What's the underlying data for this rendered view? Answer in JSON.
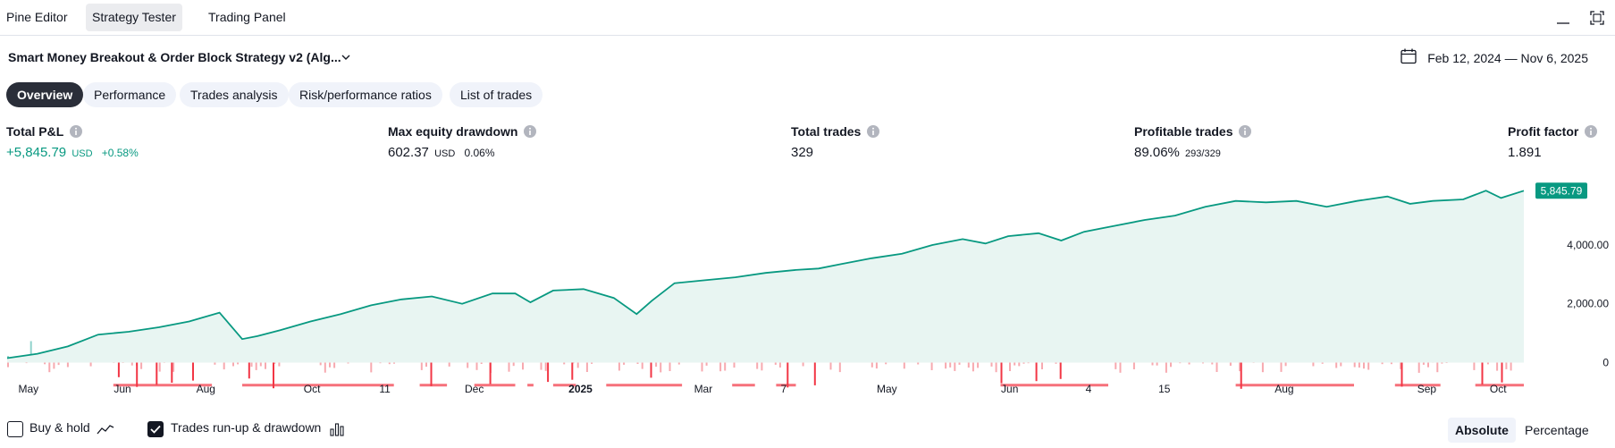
{
  "top_tabs": [
    {
      "label": "Pine Editor",
      "active": false
    },
    {
      "label": "Strategy Tester",
      "active": true
    },
    {
      "label": "Trading Panel",
      "active": false
    }
  ],
  "strategy": {
    "title": "Smart Money Breakout & Order Block Strategy v2 (Alg...",
    "date_range": "Feb 12, 2024 — Nov 6, 2025"
  },
  "sub_tabs": [
    {
      "label": "Overview",
      "active": true
    },
    {
      "label": "Performance",
      "active": false
    },
    {
      "label": "Trades analysis",
      "active": false
    },
    {
      "label": "Risk/performance ratios",
      "active": false
    },
    {
      "label": "List of trades",
      "active": false
    }
  ],
  "metrics": {
    "total_pnl": {
      "label": "Total P&L",
      "value": "+5,845.79",
      "unit": "USD",
      "extra": "+0.58%"
    },
    "max_drawdown": {
      "label": "Max equity drawdown",
      "value": "602.37",
      "unit": "USD",
      "extra": "0.06%"
    },
    "total_trades": {
      "label": "Total trades",
      "value": "329"
    },
    "profitable_trades": {
      "label": "Profitable trades",
      "value": "89.06%",
      "extra": "293/329"
    },
    "profit_factor": {
      "label": "Profit factor",
      "value": "1.891"
    }
  },
  "colors": {
    "accent_green": "#089981",
    "equity_line": "#089981",
    "equity_fill": "#e8f5f2",
    "runup_bar": "#26a69a",
    "drawdown_bar": "#f23645",
    "drawdown_light": "#f7a9af"
  },
  "chart_data": {
    "type": "area",
    "title": "",
    "xlabel": "",
    "ylabel": "",
    "y_tick_labels": [
      "4,000.00",
      "2,000.00",
      "0"
    ],
    "y_ticks": [
      4000,
      2000,
      0
    ],
    "ylim": [
      -1050,
      6250
    ],
    "last_value_label": "5,845.79",
    "x_tick_labels": [
      "May",
      "Jun",
      "Aug",
      "Oct",
      "11",
      "Dec",
      "2025",
      "Mar",
      "7",
      "May",
      "Jun",
      "4",
      "15",
      "Aug",
      "Sep",
      "Oct"
    ],
    "x_tick_positions": [
      0.014,
      0.076,
      0.131,
      0.201,
      0.249,
      0.308,
      0.378,
      0.459,
      0.512,
      0.58,
      0.661,
      0.713,
      0.763,
      0.842,
      0.936,
      0.983
    ],
    "bold_tick": "2025",
    "equity_series": {
      "name": "Equity",
      "x": [
        0,
        0.02,
        0.04,
        0.06,
        0.08,
        0.1,
        0.12,
        0.14,
        0.155,
        0.165,
        0.18,
        0.2,
        0.22,
        0.24,
        0.26,
        0.28,
        0.3,
        0.32,
        0.335,
        0.345,
        0.36,
        0.38,
        0.4,
        0.415,
        0.425,
        0.44,
        0.46,
        0.48,
        0.5,
        0.52,
        0.535,
        0.55,
        0.57,
        0.59,
        0.61,
        0.63,
        0.645,
        0.66,
        0.68,
        0.695,
        0.71,
        0.73,
        0.75,
        0.77,
        0.79,
        0.81,
        0.83,
        0.85,
        0.87,
        0.89,
        0.91,
        0.925,
        0.94,
        0.96,
        0.975,
        0.985,
        1.0
      ],
      "y": [
        150,
        300,
        550,
        950,
        1050,
        1200,
        1400,
        1700,
        800,
        900,
        1100,
        1400,
        1650,
        1950,
        2150,
        2250,
        2000,
        2350,
        2350,
        2050,
        2450,
        2500,
        2200,
        1650,
        2100,
        2700,
        2800,
        2900,
        3050,
        3150,
        3200,
        3350,
        3550,
        3700,
        4000,
        4200,
        4050,
        4300,
        4400,
        4150,
        4450,
        4650,
        4850,
        5000,
        5300,
        5500,
        5450,
        5500,
        5300,
        5500,
        5650,
        5400,
        5500,
        5550,
        5850,
        5600,
        5845.79
      ]
    },
    "runup_drawdown": {
      "runup_max": 800,
      "drawdown_min": -900,
      "drawdown_spike_positions": [
        0.073,
        0.085,
        0.098,
        0.108,
        0.122,
        0.159,
        0.175,
        0.279,
        0.318,
        0.356,
        0.372,
        0.424,
        0.514,
        0.532,
        0.655,
        0.678,
        0.694,
        0.813,
        0.919,
        0.972,
        0.985
      ]
    }
  },
  "bottom": {
    "buy_hold_label": "Buy & hold",
    "buy_hold_checked": false,
    "runup_label": "Trades run-up & drawdown",
    "runup_checked": true,
    "absolute_label": "Absolute",
    "percentage_label": "Percentage"
  }
}
